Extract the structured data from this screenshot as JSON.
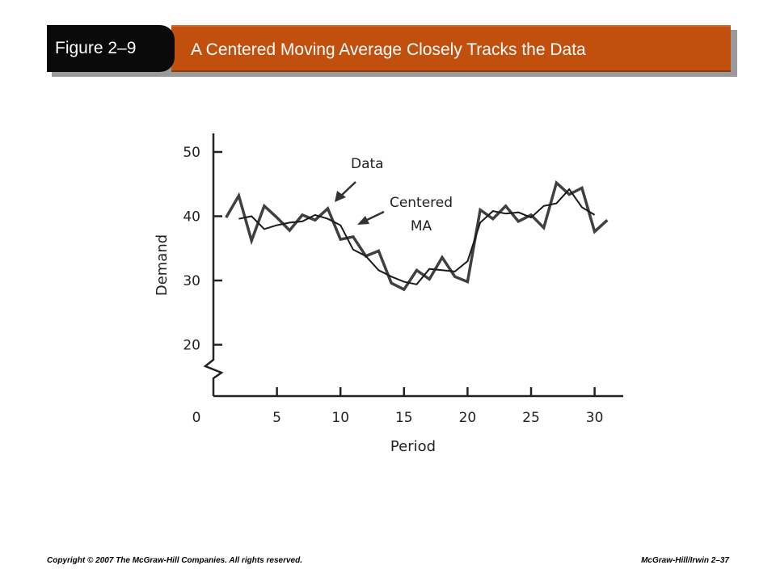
{
  "header": {
    "figure_number": "Figure 2–9",
    "title": "A Centered Moving Average Closely Tracks the Data"
  },
  "footer": {
    "copyright": "Copyright © 2007 The McGraw-Hill Companies. All rights reserved.",
    "page_ref": "McGraw-Hill/Irwin 2–37"
  },
  "chart_data": {
    "type": "line",
    "title": "",
    "xlabel": "Period",
    "ylabel": "Demand",
    "xlim": [
      0,
      33
    ],
    "ylim": [
      0,
      53
    ],
    "x_ticks": [
      0,
      5,
      10,
      15,
      20,
      25,
      30
    ],
    "y_ticks": [
      20,
      30,
      40,
      50
    ],
    "y_axis_break": true,
    "grid": false,
    "annotations": [
      {
        "text": "Data",
        "target_series": "Data"
      },
      {
        "text": "Centered\nMA",
        "target_series": "Centered MA"
      }
    ],
    "series": [
      {
        "name": "Data",
        "color": "#404040",
        "x": [
          1,
          2,
          3,
          4,
          5,
          6,
          7,
          8,
          9,
          10,
          11,
          12,
          13,
          14,
          15,
          16,
          17,
          18,
          19,
          20,
          21,
          22,
          23,
          24,
          25,
          26,
          27,
          28,
          29,
          30,
          31
        ],
        "values": [
          39.8,
          43.2,
          36.2,
          41.6,
          39.8,
          37.8,
          40.2,
          39.4,
          41.2,
          36.4,
          36.8,
          33.8,
          34.6,
          29.6,
          28.6,
          31.6,
          30.2,
          33.6,
          30.6,
          29.8,
          41.0,
          39.6,
          41.6,
          39.2,
          40.2,
          38.2,
          45.2,
          43.4,
          44.4,
          37.6,
          39.4
        ]
      },
      {
        "name": "Centered MA",
        "color": "#1a1a1a",
        "x": [
          2,
          3,
          4,
          5,
          6,
          7,
          8,
          9,
          10,
          11,
          12,
          13,
          14,
          15,
          16,
          17,
          18,
          19,
          20,
          21,
          22,
          23,
          24,
          25,
          26,
          27,
          28,
          29,
          30
        ],
        "values": [
          39.6,
          40.0,
          38.0,
          38.6,
          39.0,
          39.2,
          40.2,
          39.6,
          38.6,
          34.8,
          33.8,
          31.6,
          30.6,
          29.8,
          29.4,
          31.8,
          31.6,
          31.4,
          33.0,
          39.0,
          40.8,
          40.4,
          40.6,
          39.8,
          41.6,
          42.0,
          44.2,
          41.4,
          40.2
        ]
      }
    ]
  }
}
